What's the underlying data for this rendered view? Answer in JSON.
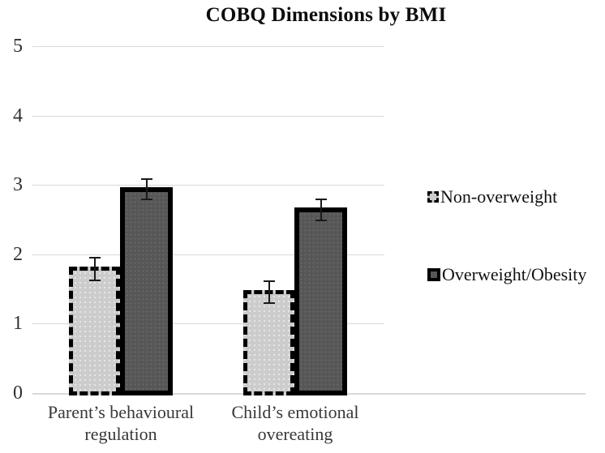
{
  "title": "COBQ Dimensions by BMI",
  "colors": {
    "light_series_fill": "#cccccc",
    "dark_series_fill": "#565656",
    "bar_border": "#000000",
    "gridline": "#d9d9d9",
    "axis_text": "#303030",
    "category_text": "#383838",
    "legend_text": "#111111"
  },
  "legend": {
    "items": [
      {
        "label": "Non-overweight",
        "swatch": "dashed-light"
      },
      {
        "label": "Overweight/Obesity",
        "swatch": "solid-dark"
      }
    ]
  },
  "chart_data": {
    "type": "bar",
    "title": "COBQ Dimensions by BMI",
    "categories": [
      "Parent’s behavioural regulation",
      "Child’s emotional overeating"
    ],
    "series": [
      {
        "name": "Non-overweight",
        "style": "light-dashed",
        "values": [
          1.8,
          1.47
        ],
        "errors": [
          0.16,
          0.16
        ]
      },
      {
        "name": "Overweight/Obesity",
        "style": "dark-solid",
        "values": [
          2.95,
          2.65
        ],
        "errors": [
          0.15,
          0.15
        ]
      }
    ],
    "xlabel": "",
    "ylabel": "",
    "ylim": [
      0,
      5
    ],
    "yticks": [
      0,
      1,
      2,
      3,
      4,
      5
    ],
    "grid": true,
    "error_bars": true,
    "legend_position": "right"
  }
}
